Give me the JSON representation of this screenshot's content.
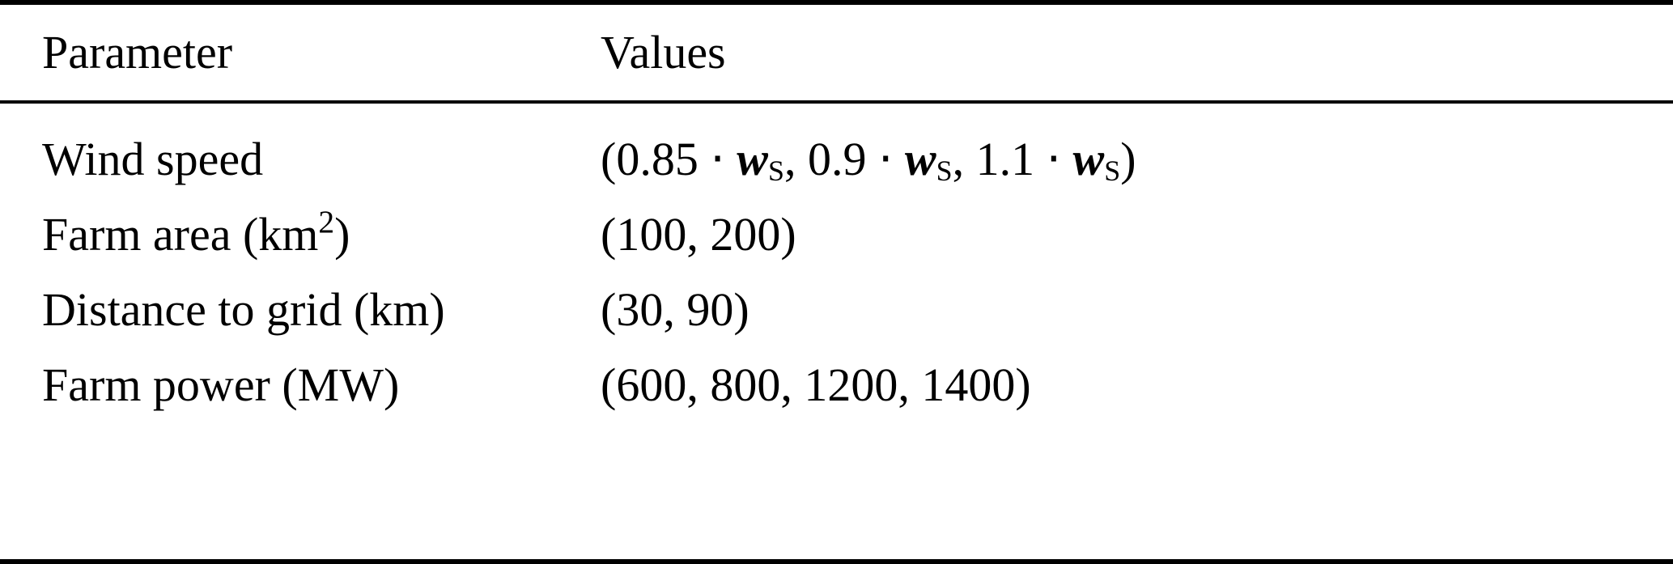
{
  "table": {
    "columns": [
      "Parameter",
      "Values"
    ],
    "rows": [
      {
        "parameter": "Wind speed",
        "values": "(0.85 ⋅ **w**_{S}, 0.9 ⋅ **w**_{S}, 1.1 ⋅ **w**_{S})"
      },
      {
        "parameter": "Farm area (km^{2})",
        "values": "(100, 200)"
      },
      {
        "parameter": "Distance to grid (km)",
        "values": "(30, 90)"
      },
      {
        "parameter": "Farm power (MW)",
        "values": "(600, 800, 1200, 1400)"
      }
    ]
  }
}
